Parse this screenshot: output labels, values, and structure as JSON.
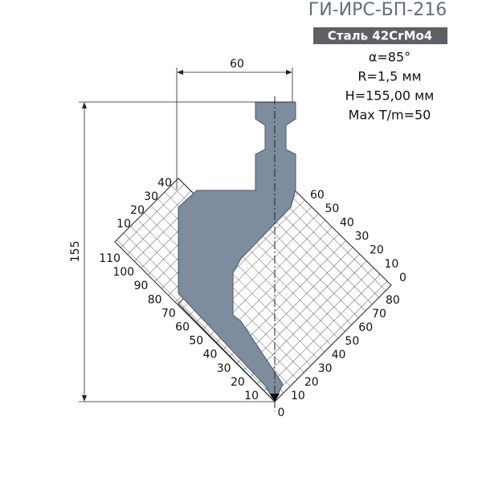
{
  "header": {
    "title": "ГИ-ИРС-БП-216",
    "material": "Сталь 42CrMo4"
  },
  "specs": [
    "α=85°",
    "R=1,5 мм",
    "H=155,00 мм",
    "Max T/m=50"
  ],
  "dimensions": {
    "width": "60",
    "height": "155"
  },
  "scale": {
    "upper_left": [
      40,
      30,
      20,
      10
    ],
    "lower_left": [
      110,
      100,
      90,
      80,
      70,
      60,
      50,
      40,
      30,
      20,
      10
    ],
    "upper_right": [
      60,
      50,
      40,
      30,
      20,
      10,
      0
    ],
    "lower_right": [
      80,
      70,
      60,
      50,
      40,
      30,
      20,
      10
    ],
    "tip": 0
  }
}
